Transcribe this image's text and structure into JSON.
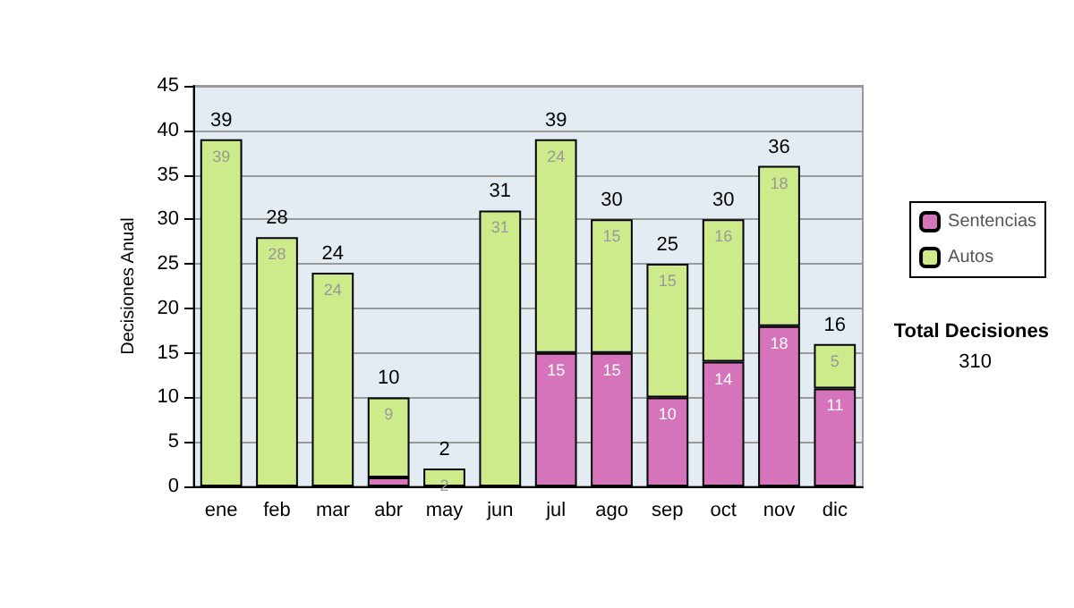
{
  "chart_data": {
    "type": "bar",
    "stacked": true,
    "ylabel": "Decisiones Anual",
    "categories": [
      "ene",
      "feb",
      "mar",
      "abr",
      "may",
      "jun",
      "jul",
      "ago",
      "sep",
      "oct",
      "nov",
      "dic"
    ],
    "series": [
      {
        "name": "Sentencias",
        "color": "#d674bb",
        "values": [
          0,
          0,
          0,
          1,
          0,
          0,
          15,
          15,
          10,
          14,
          18,
          11
        ],
        "value_labels": [
          null,
          null,
          null,
          null,
          null,
          null,
          "15",
          "15",
          "10",
          "14",
          "18",
          "11"
        ]
      },
      {
        "name": "Autos",
        "color": "#cdeb8b",
        "values": [
          39,
          28,
          24,
          9,
          2,
          31,
          24,
          15,
          15,
          16,
          18,
          5
        ],
        "value_labels": [
          "39",
          "28",
          "24",
          "9",
          "2",
          "31",
          "24",
          "15",
          "15",
          "16",
          "18",
          "5"
        ]
      }
    ],
    "totals": [
      "39",
      "28",
      "24",
      "10",
      "2",
      "31",
      "39",
      "30",
      "25",
      "30",
      "36",
      "16"
    ],
    "ylim": [
      0,
      45
    ],
    "yticks": [
      0,
      5,
      10,
      15,
      20,
      25,
      30,
      35,
      40,
      45
    ],
    "grid": "y",
    "legend": "right",
    "annotations": [
      "Total Decisiones",
      "310"
    ]
  }
}
